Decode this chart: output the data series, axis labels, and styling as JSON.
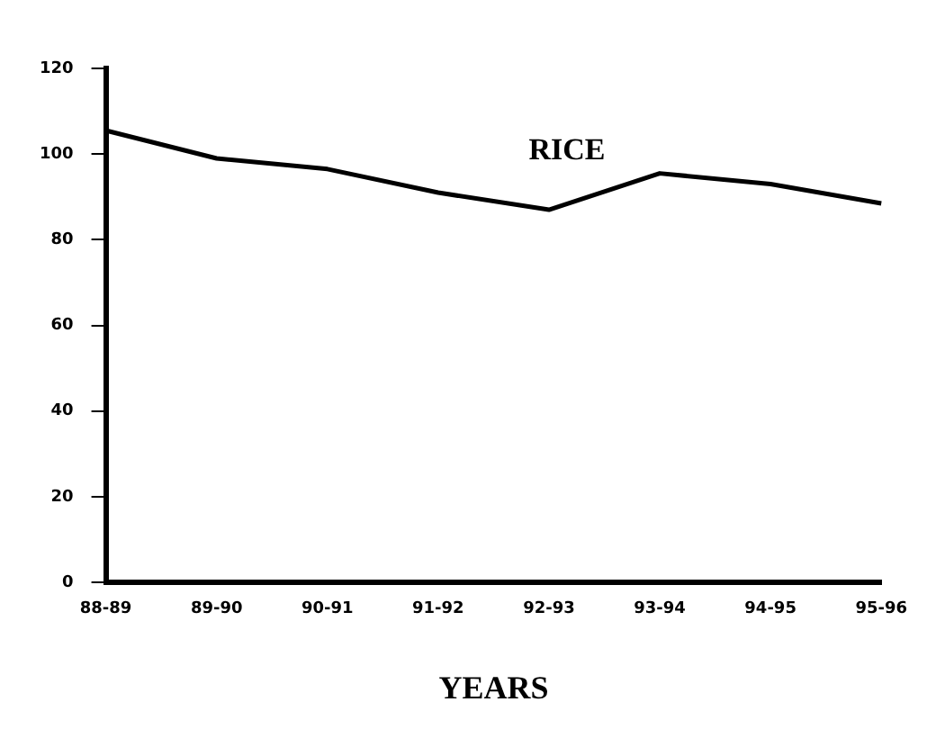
{
  "chart_data": {
    "type": "line",
    "xlabel": "YEARS",
    "categories": [
      "88-89",
      "89-90",
      "90-91",
      "91-92",
      "92-93",
      "93-94",
      "94-95",
      "95-96"
    ],
    "series": [
      {
        "name": "RICE",
        "color": "#000000",
        "values": [
          105.5,
          99,
          96.5,
          91,
          87,
          95.5,
          93,
          88.5
        ]
      }
    ],
    "ylim": [
      0,
      120
    ],
    "yticks": [
      0,
      20,
      40,
      60,
      80,
      100,
      120
    ],
    "grid": false,
    "legend": false,
    "marker": "none",
    "line_style": "solid"
  }
}
